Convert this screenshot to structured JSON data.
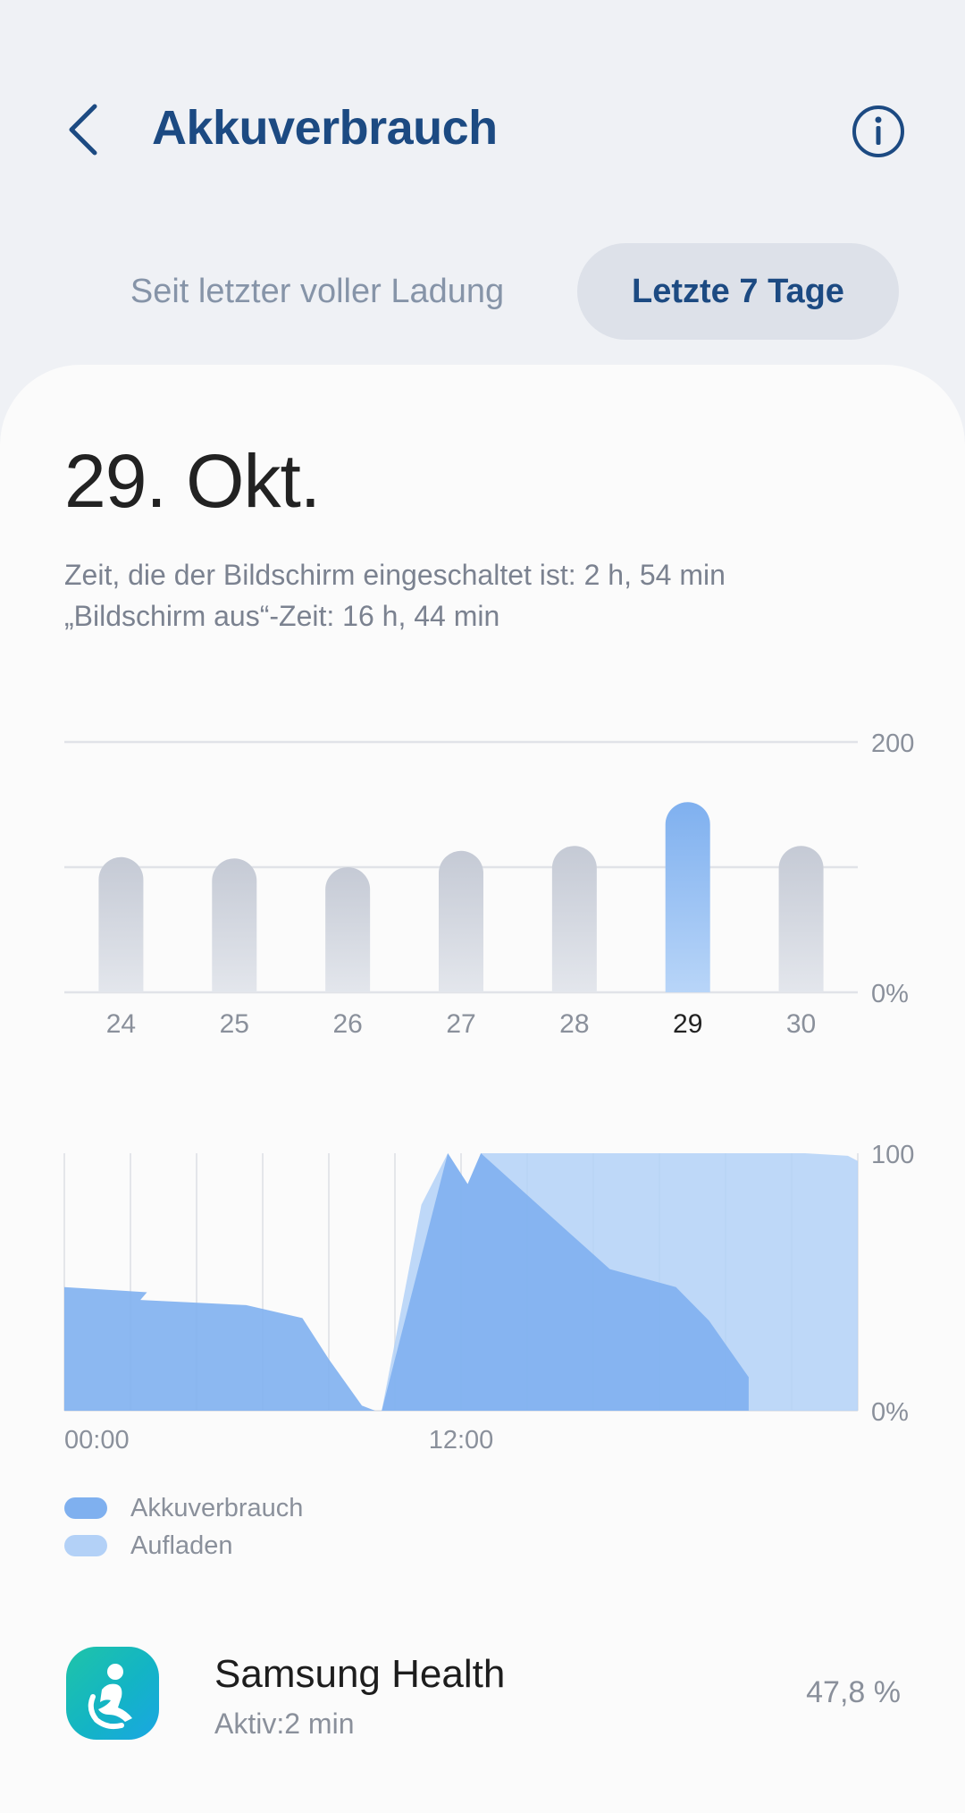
{
  "header": {
    "title": "Akkuverbrauch",
    "back_icon": "chevron-left-icon",
    "info_icon": "info-icon"
  },
  "tabs": [
    {
      "label": "Seit letzter voller Ladung",
      "selected": false
    },
    {
      "label": "Letzte 7 Tage",
      "selected": true
    }
  ],
  "selected_day": {
    "date": "29. Okt.",
    "screen_on": "Zeit, die der Bildschirm eingeschaltet ist: 2 h, 54 min",
    "screen_off": "„Bildschirm aus“-Zeit: 16 h, 44 min"
  },
  "chart_data": [
    {
      "type": "bar",
      "categories": [
        "24",
        "25",
        "26",
        "27",
        "28",
        "29",
        "30"
      ],
      "values": [
        108,
        107,
        100,
        113,
        117,
        152,
        117
      ],
      "selected_category": "29",
      "y_tick_labels": {
        "top": "200",
        "bottom": "0%"
      },
      "ylim": [
        0,
        200
      ],
      "grid": true,
      "colors": {
        "bar": "#c9ced8",
        "selected_bar": "#7fb0ef"
      }
    },
    {
      "type": "area",
      "x_tick_labels": [
        "00:00",
        "12:00"
      ],
      "y_tick_labels": {
        "top": "100",
        "bottom": "0%"
      },
      "ylim": [
        0,
        100
      ],
      "xlim": [
        0,
        24
      ],
      "grid": true,
      "series": [
        {
          "name": "Akkuverbrauch",
          "color": "#7fb0ef",
          "x": [
            0,
            2.5,
            2.3,
            5.5,
            7.2,
            8,
            9,
            9.4,
            9.6,
            11.6,
            12.2,
            12.6,
            14.5,
            16.5,
            18.5,
            19.5,
            20.7
          ],
          "y": [
            48,
            46,
            43,
            41,
            36,
            20,
            2,
            0,
            0,
            100,
            88,
            100,
            78,
            55,
            48,
            35,
            13
          ]
        },
        {
          "name": "Aufladen",
          "color": "#b3d1f7",
          "x": [
            9.6,
            10.8,
            11.6,
            12.2,
            12.6,
            22.4,
            23.7,
            24
          ],
          "y": [
            0,
            80,
            100,
            88,
            100,
            100,
            99,
            97
          ]
        }
      ]
    }
  ],
  "legend": [
    {
      "label": "Akkuverbrauch",
      "color": "#7fb0ef"
    },
    {
      "label": "Aufladen",
      "color": "#b3d1f7"
    }
  ],
  "app_list": [
    {
      "name": "Samsung Health",
      "subtitle": "Aktiv:2 min",
      "percent": "47,8 %",
      "icon": "samsung-health-icon"
    }
  ]
}
